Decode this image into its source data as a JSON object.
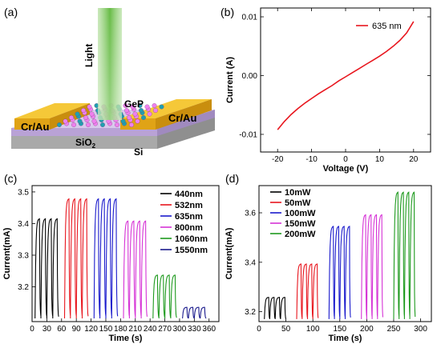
{
  "panels": {
    "a": "(a)",
    "b": "(b)",
    "c": "(c)",
    "d": "(d)"
  },
  "schematic": {
    "light": "Light",
    "material": "GeP",
    "electrode_left": "Cr/Au",
    "electrode_right": "Cr/Au",
    "oxide": "SiO",
    "oxide_sub": "2",
    "substrate": "Si",
    "colors": {
      "electrode": "#f2b824",
      "oxide": "#c9b4e0",
      "si": "#b8b8b8",
      "beam": "#6abf4b",
      "atom_pink": "#ee80ee",
      "atom_teal": "#20a0b0"
    }
  },
  "chart_data": [
    {
      "id": "b",
      "type": "line",
      "xlabel": "Voltage (V)",
      "ylabel": "Current (A)",
      "xlim": [
        -25,
        25
      ],
      "ylim": [
        -0.013,
        0.0115
      ],
      "xticks": [
        -20,
        -10,
        0,
        10,
        20
      ],
      "xtick_labels": [
        "-20",
        "-10",
        "0",
        "10",
        "20"
      ],
      "yticks": [
        -0.01,
        0.0,
        0.01
      ],
      "ytick_labels": [
        "-0.01",
        "0.00",
        "0.01"
      ],
      "legend_position": "top-right",
      "series": [
        {
          "name": "635 nm",
          "color": "#e8161e",
          "x": [
            -20,
            -18,
            -16,
            -14,
            -12,
            -10,
            -8,
            -6,
            -4,
            -2,
            0,
            2,
            4,
            6,
            8,
            10,
            12,
            14,
            16,
            18,
            20
          ],
          "y": [
            -0.0092,
            -0.0078,
            -0.0066,
            -0.0056,
            -0.0047,
            -0.0039,
            -0.0031,
            -0.0024,
            -0.0017,
            -0.0009,
            -0.0002,
            0.0005,
            0.0012,
            0.0019,
            0.0026,
            0.0033,
            0.0041,
            0.005,
            0.006,
            0.0073,
            0.0092
          ]
        }
      ]
    },
    {
      "id": "c",
      "type": "line",
      "xlabel": "Time (s)",
      "ylabel": "Current(mA)",
      "xlim": [
        0,
        380
      ],
      "ylim": [
        3.09,
        3.52
      ],
      "xticks": [
        0,
        30,
        60,
        90,
        120,
        150,
        180,
        210,
        240,
        270,
        300,
        330,
        360
      ],
      "xtick_labels": [
        "0",
        "30",
        "60",
        "90",
        "120",
        "150",
        "180",
        "210",
        "240",
        "270",
        "300",
        "330",
        "360"
      ],
      "yticks": [
        3.2,
        3.3,
        3.4,
        3.5
      ],
      "ytick_labels": [
        "3.2",
        "3.3",
        "3.4",
        "3.5"
      ],
      "legend_position": "top-right",
      "baseline": 3.1,
      "pulse_on": 9,
      "pulse_off": 3,
      "series": [
        {
          "name": "440nm",
          "color": "#000000",
          "start": 6,
          "peak": 3.415,
          "pulses": 4
        },
        {
          "name": "532nm",
          "color": "#e8161e",
          "start": 66,
          "peak": 3.478,
          "pulses": 4
        },
        {
          "name": "635nm",
          "color": "#1a1acc",
          "start": 126,
          "peak": 3.478,
          "pulses": 4
        },
        {
          "name": "800nm",
          "color": "#d633d6",
          "start": 186,
          "peak": 3.408,
          "pulses": 4
        },
        {
          "name": "1060nm",
          "color": "#1e9a1e",
          "start": 246,
          "peak": 3.237,
          "pulses": 4
        },
        {
          "name": "1550nm",
          "color": "#1a1a8c",
          "start": 306,
          "peak": 3.135,
          "pulses": 4
        }
      ]
    },
    {
      "id": "d",
      "type": "line",
      "xlabel": "Time (s)",
      "ylabel": "Current(mA)",
      "xlim": [
        0,
        320
      ],
      "ylim": [
        3.16,
        3.71
      ],
      "xticks": [
        0,
        50,
        100,
        150,
        200,
        250,
        300
      ],
      "xtick_labels": [
        "0",
        "50",
        "100",
        "150",
        "200",
        "250",
        "300"
      ],
      "yticks": [
        3.2,
        3.4,
        3.6
      ],
      "ytick_labels": [
        "3.2",
        "3.4",
        "3.6"
      ],
      "legend_position": "top-left",
      "baseline": 3.17,
      "pulse_on": 8,
      "pulse_off": 2,
      "series": [
        {
          "name": "10mW",
          "color": "#000000",
          "start": 10,
          "peak": 3.258,
          "pulses": 4
        },
        {
          "name": "50mW",
          "color": "#e8161e",
          "start": 70,
          "peak": 3.393,
          "pulses": 4
        },
        {
          "name": "100mW",
          "color": "#1a1acc",
          "start": 130,
          "peak": 3.545,
          "pulses": 4
        },
        {
          "name": "150mW",
          "color": "#d633d6",
          "start": 190,
          "peak": 3.592,
          "pulses": 4
        },
        {
          "name": "200mW",
          "color": "#1e9a1e",
          "start": 250,
          "peak": 3.683,
          "pulses": 4
        }
      ]
    }
  ]
}
